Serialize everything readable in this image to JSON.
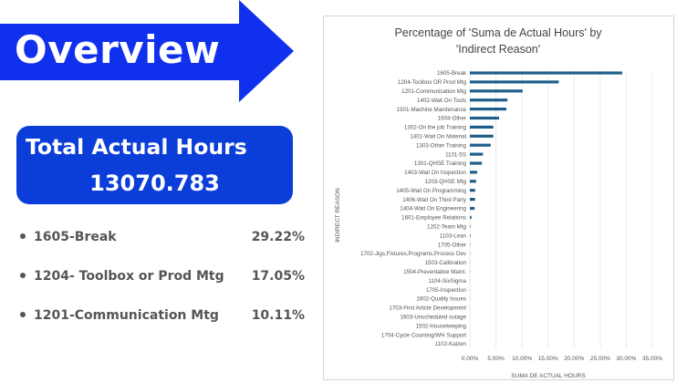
{
  "banner": {
    "title": "Overview",
    "color": "#1030ee"
  },
  "total_card": {
    "label": "Total Actual Hours",
    "value": "13070.783",
    "color": "#0b3ed8"
  },
  "top_reasons": [
    {
      "name": "1605-Break",
      "percent": "29.22%"
    },
    {
      "name": "1204- Toolbox or Prod Mtg",
      "percent": "17.05%"
    },
    {
      "name": "1201-Communication Mtg",
      "percent": "10.11%"
    }
  ],
  "chart_data": {
    "type": "bar",
    "orientation": "horizontal",
    "title": "Percentage of 'Suma de Actual Hours' by 'Indirect Reason'",
    "xlabel": "SUMA DE ACTUAL HOURS",
    "ylabel": "INDIRECT REASON",
    "xlim": [
      0,
      35
    ],
    "x_ticks": [
      "0.00%",
      "5.00%",
      "10.00%",
      "15.00%",
      "20.00%",
      "25.00%",
      "30.00%",
      "35.00%"
    ],
    "bar_color": "#1f5e8a",
    "grid": true,
    "categories": [
      "1605-Break",
      "1204-Toolbox OR Prod Mtg",
      "1201-Communication Mtg",
      "1402-Wait On Tools",
      "1501-Machine Maintenance",
      "1604-Other",
      "1302-On the job Training",
      "1401-Wait On Material",
      "1303-Other Training",
      "1101-5S",
      "1301-QHSE Training",
      "1403-Wait On Inspection",
      "1203-QHSE Mtg",
      "1405-Wait On Programming",
      "1406-Wait On Third Party",
      "1404-Wait On Engineering",
      "1601-Employee Relations",
      "1202-Team Mtg",
      "1103-Lean",
      "1705-Other",
      "1702-Jigs,Fixtures,Programs,Process Dev",
      "1503-Calibration",
      "1504-Preventative Maint.",
      "1104-SixSigma",
      "1705-Inspection",
      "1602-Quality Issues",
      "1703-First Article Development",
      "1603-Unscheduled outage",
      "1502-Housekeeping",
      "1704-Cycle Counting/WH Support",
      "1102-Kaizen"
    ],
    "values": [
      29.22,
      17.05,
      10.11,
      7.2,
      7.0,
      5.6,
      4.5,
      4.5,
      4.0,
      2.5,
      2.3,
      1.4,
      1.2,
      1.0,
      1.0,
      0.9,
      0.3,
      0.1,
      0.1,
      0.05,
      0.04,
      0.03,
      0.03,
      0.02,
      0.02,
      0.02,
      0.01,
      0.01,
      0.01,
      0.01,
      0.01
    ]
  }
}
